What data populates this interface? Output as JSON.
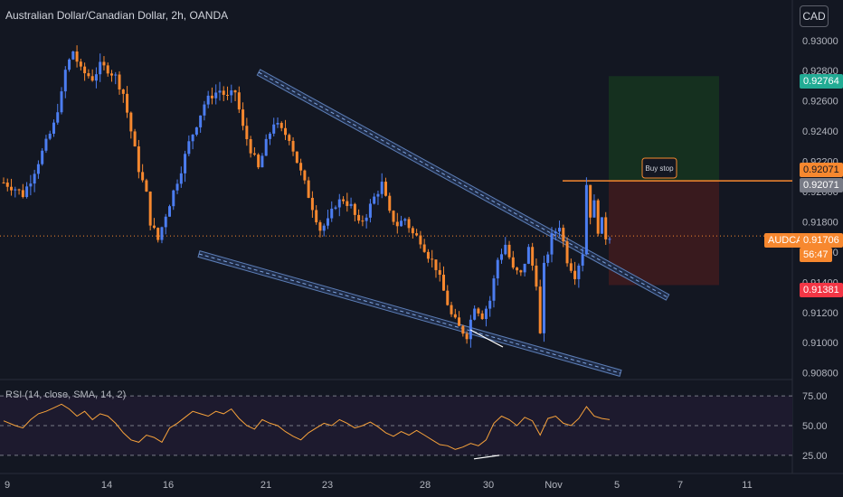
{
  "header": {
    "title": "Australian Dollar/Canadian Dollar, 2h, OANDA",
    "currency_button": "CAD"
  },
  "price_tags": {
    "target": "0.92764",
    "entry": "0.92071",
    "entry_gray": "0.92071",
    "symbol": "AUDCAD",
    "last": "0.91706",
    "countdown": "56:47",
    "stop": "0.91381"
  },
  "annotation": {
    "order_label": "Buy stop"
  },
  "rsi": {
    "label": "RSI (14, close, SMA, 14, 2)",
    "levels": [
      "75.00",
      "50.00",
      "25.00"
    ]
  },
  "colors": {
    "bg": "#131722",
    "up": "#4c7df0",
    "down": "#f7882f",
    "target_zone": "#153220",
    "stop_zone": "#3b1a1f",
    "target_tag": "#22ab94",
    "stop_tag": "#f23645",
    "channel": "#4c6fa8"
  },
  "chart_data": {
    "type": "candlestick",
    "symbol": "AUDCAD",
    "timeframe": "2h",
    "x_ticks": [
      "9",
      "14",
      "16",
      "21",
      "23",
      "28",
      "30",
      "Nov",
      "5",
      "7",
      "11"
    ],
    "y_ticks": [
      "0.93000",
      "0.92800",
      "0.92600",
      "0.92400",
      "0.92200",
      "0.92000",
      "0.91800",
      "0.91600",
      "0.91400",
      "0.91200",
      "0.91000",
      "0.90800"
    ],
    "ylim": [
      0.9078,
      0.9316
    ],
    "close_path": [
      [
        0,
        0.9206
      ],
      [
        3,
        0.9202
      ],
      [
        5,
        0.9198
      ],
      [
        7,
        0.9208
      ],
      [
        9,
        0.922
      ],
      [
        11,
        0.9232
      ],
      [
        13,
        0.9244
      ],
      [
        14,
        0.9255
      ],
      [
        15,
        0.9264
      ],
      [
        16,
        0.928
      ],
      [
        18,
        0.9293
      ],
      [
        20,
        0.928
      ],
      [
        23,
        0.9275
      ],
      [
        25,
        0.9283
      ],
      [
        27,
        0.9281
      ],
      [
        29,
        0.9276
      ],
      [
        31,
        0.9265
      ],
      [
        33,
        0.924
      ],
      [
        35,
        0.9215
      ],
      [
        37,
        0.9198
      ],
      [
        38,
        0.918
      ],
      [
        40,
        0.9168
      ],
      [
        42,
        0.9185
      ],
      [
        44,
        0.92
      ],
      [
        46,
        0.9215
      ],
      [
        48,
        0.9232
      ],
      [
        50,
        0.9245
      ],
      [
        52,
        0.9258
      ],
      [
        54,
        0.9264
      ],
      [
        56,
        0.9267
      ],
      [
        58,
        0.9262
      ],
      [
        60,
        0.9266
      ],
      [
        62,
        0.9242
      ],
      [
        64,
        0.9228
      ],
      [
        66,
        0.9215
      ],
      [
        68,
        0.9232
      ],
      [
        70,
        0.9246
      ],
      [
        72,
        0.924
      ],
      [
        74,
        0.9236
      ],
      [
        76,
        0.922
      ],
      [
        78,
        0.9205
      ],
      [
        80,
        0.919
      ],
      [
        82,
        0.9175
      ],
      [
        84,
        0.918
      ],
      [
        86,
        0.9192
      ],
      [
        88,
        0.9195
      ],
      [
        90,
        0.919
      ],
      [
        92,
        0.9178
      ],
      [
        94,
        0.9185
      ],
      [
        96,
        0.9196
      ],
      [
        98,
        0.9205
      ],
      [
        100,
        0.9185
      ],
      [
        102,
        0.9178
      ],
      [
        104,
        0.9182
      ],
      [
        106,
        0.9172
      ],
      [
        108,
        0.9168
      ],
      [
        110,
        0.9158
      ],
      [
        112,
        0.915
      ],
      [
        114,
        0.9134
      ],
      [
        116,
        0.9118
      ],
      [
        118,
        0.911
      ],
      [
        120,
        0.9105
      ],
      [
        122,
        0.9125
      ],
      [
        124,
        0.9118
      ],
      [
        126,
        0.9128
      ],
      [
        128,
        0.9155
      ],
      [
        130,
        0.9165
      ],
      [
        132,
        0.9148
      ],
      [
        134,
        0.9145
      ],
      [
        136,
        0.9162
      ],
      [
        138,
        0.914
      ],
      [
        139,
        0.9105
      ],
      [
        140,
        0.915
      ],
      [
        142,
        0.917
      ],
      [
        144,
        0.9178
      ],
      [
        146,
        0.9155
      ],
      [
        148,
        0.9145
      ],
      [
        150,
        0.916
      ],
      [
        151,
        0.9205
      ],
      [
        152,
        0.9185
      ],
      [
        153,
        0.9192
      ],
      [
        154,
        0.9175
      ],
      [
        155,
        0.918
      ],
      [
        156,
        0.917
      ],
      [
        157,
        0.9171
      ]
    ],
    "rsi_path": [
      [
        0,
        54
      ],
      [
        3,
        50
      ],
      [
        5,
        48
      ],
      [
        7,
        55
      ],
      [
        9,
        60
      ],
      [
        11,
        62
      ],
      [
        13,
        65
      ],
      [
        15,
        68
      ],
      [
        17,
        64
      ],
      [
        19,
        58
      ],
      [
        21,
        62
      ],
      [
        23,
        55
      ],
      [
        25,
        60
      ],
      [
        27,
        58
      ],
      [
        29,
        52
      ],
      [
        31,
        44
      ],
      [
        33,
        38
      ],
      [
        35,
        36
      ],
      [
        37,
        42
      ],
      [
        39,
        40
      ],
      [
        41,
        36
      ],
      [
        43,
        48
      ],
      [
        45,
        52
      ],
      [
        47,
        57
      ],
      [
        49,
        62
      ],
      [
        51,
        60
      ],
      [
        53,
        58
      ],
      [
        55,
        62
      ],
      [
        57,
        60
      ],
      [
        59,
        64
      ],
      [
        61,
        56
      ],
      [
        63,
        50
      ],
      [
        65,
        47
      ],
      [
        67,
        55
      ],
      [
        69,
        52
      ],
      [
        71,
        50
      ],
      [
        73,
        45
      ],
      [
        75,
        41
      ],
      [
        77,
        38
      ],
      [
        79,
        44
      ],
      [
        81,
        48
      ],
      [
        83,
        52
      ],
      [
        85,
        50
      ],
      [
        87,
        55
      ],
      [
        89,
        52
      ],
      [
        91,
        48
      ],
      [
        93,
        50
      ],
      [
        95,
        53
      ],
      [
        97,
        49
      ],
      [
        99,
        44
      ],
      [
        101,
        41
      ],
      [
        103,
        45
      ],
      [
        105,
        42
      ],
      [
        107,
        46
      ],
      [
        109,
        42
      ],
      [
        111,
        38
      ],
      [
        113,
        34
      ],
      [
        115,
        33
      ],
      [
        117,
        30
      ],
      [
        119,
        32
      ],
      [
        121,
        35
      ],
      [
        123,
        33
      ],
      [
        125,
        38
      ],
      [
        127,
        52
      ],
      [
        129,
        58
      ],
      [
        131,
        55
      ],
      [
        133,
        50
      ],
      [
        135,
        57
      ],
      [
        137,
        54
      ],
      [
        139,
        42
      ],
      [
        141,
        56
      ],
      [
        143,
        58
      ],
      [
        145,
        52
      ],
      [
        147,
        50
      ],
      [
        149,
        56
      ],
      [
        151,
        66
      ],
      [
        153,
        58
      ],
      [
        155,
        56
      ],
      [
        157,
        55
      ]
    ],
    "rsi_ylim": [
      15,
      85
    ]
  }
}
